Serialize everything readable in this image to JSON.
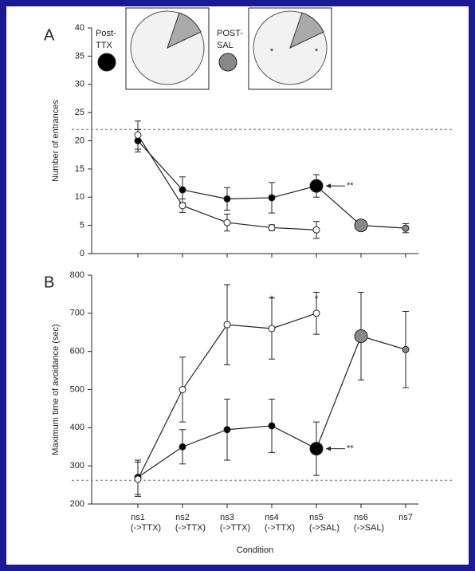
{
  "chart_data": [
    {
      "type": "line",
      "panel_label": "A",
      "y_label": "Number of entrances",
      "categories": [
        null,
        null,
        null,
        null,
        null,
        null,
        null
      ],
      "ylim": [
        0,
        40
      ],
      "yticks": [
        0,
        5,
        10,
        15,
        20,
        25,
        30,
        35,
        40
      ],
      "reference_line": 22,
      "series": [
        {
          "color": "#000000",
          "values": [
            20.0,
            11.3,
            9.7,
            9.9,
            12.0,
            5.0,
            4.5
          ],
          "errors": [
            2.0,
            2.3,
            2.0,
            2.7,
            2.0,
            0,
            0.8
          ],
          "point_colors": [
            "#000000",
            "#000000",
            "#000000",
            "#000000",
            "#000000",
            "#888888",
            "#888888"
          ],
          "emphasized": [
            false,
            false,
            false,
            false,
            true,
            true,
            false
          ]
        },
        {
          "color": "#ffffff",
          "values": [
            21.0,
            8.5,
            5.5,
            4.6,
            4.2,
            null,
            null
          ],
          "errors": [
            2.5,
            1.2,
            1.5,
            0.5,
            1.5,
            null,
            null
          ],
          "point_colors": [
            "#ffffff",
            "#ffffff",
            "#ffffff",
            "#ffffff",
            "#ffffff",
            null,
            null
          ],
          "emphasized": [
            false,
            false,
            false,
            false,
            false,
            null,
            null
          ]
        }
      ],
      "significance": [
        null,
        null,
        null,
        "*",
        "*",
        null,
        null
      ],
      "arrow_labels": [
        null,
        null,
        null,
        null,
        "**",
        null,
        null
      ],
      "insets": [
        {
          "label": [
            "Post-",
            "TTX"
          ],
          "color": "#000000"
        },
        {
          "label": [
            "POST-",
            "SAL"
          ],
          "color": "#888888"
        }
      ]
    },
    {
      "type": "line",
      "panel_label": "B",
      "y_label": "Maximum time of avoidance (sec)",
      "x_label": "Condition",
      "categories": [
        "ns1",
        "ns2",
        "ns3",
        "ns4",
        "ns5",
        "ns6",
        "ns7"
      ],
      "condition_labels": [
        "(->TTX)",
        "(->TTX)",
        "(->TTX)",
        "(->TTX)",
        "(->SAL)",
        "(->SAL)",
        null
      ],
      "ylim": [
        200,
        800
      ],
      "yticks": [
        200,
        300,
        400,
        500,
        600,
        700,
        800
      ],
      "reference_line": 262,
      "series": [
        {
          "color": "#000000",
          "values": [
            270,
            350,
            395,
            405,
            345,
            640,
            605
          ],
          "errors": [
            45,
            45,
            80,
            70,
            70,
            115,
            100
          ],
          "point_colors": [
            "#000000",
            "#000000",
            "#000000",
            "#000000",
            "#000000",
            "#888888",
            "#888888"
          ],
          "emphasized": [
            false,
            false,
            false,
            false,
            true,
            true,
            false
          ]
        },
        {
          "color": "#ffffff",
          "values": [
            265,
            500,
            670,
            660,
            700,
            null,
            null
          ],
          "errors": [
            45,
            85,
            105,
            80,
            55,
            null,
            null
          ],
          "point_colors": [
            "#ffffff",
            "#ffffff",
            "#ffffff",
            "#ffffff",
            "#ffffff",
            null,
            null
          ],
          "emphasized": [
            false,
            false,
            false,
            false,
            false,
            null,
            null
          ]
        }
      ],
      "significance": [
        null,
        null,
        null,
        "*",
        "*",
        null,
        null
      ],
      "arrow_labels": [
        null,
        null,
        null,
        null,
        "**",
        null,
        null
      ]
    }
  ]
}
